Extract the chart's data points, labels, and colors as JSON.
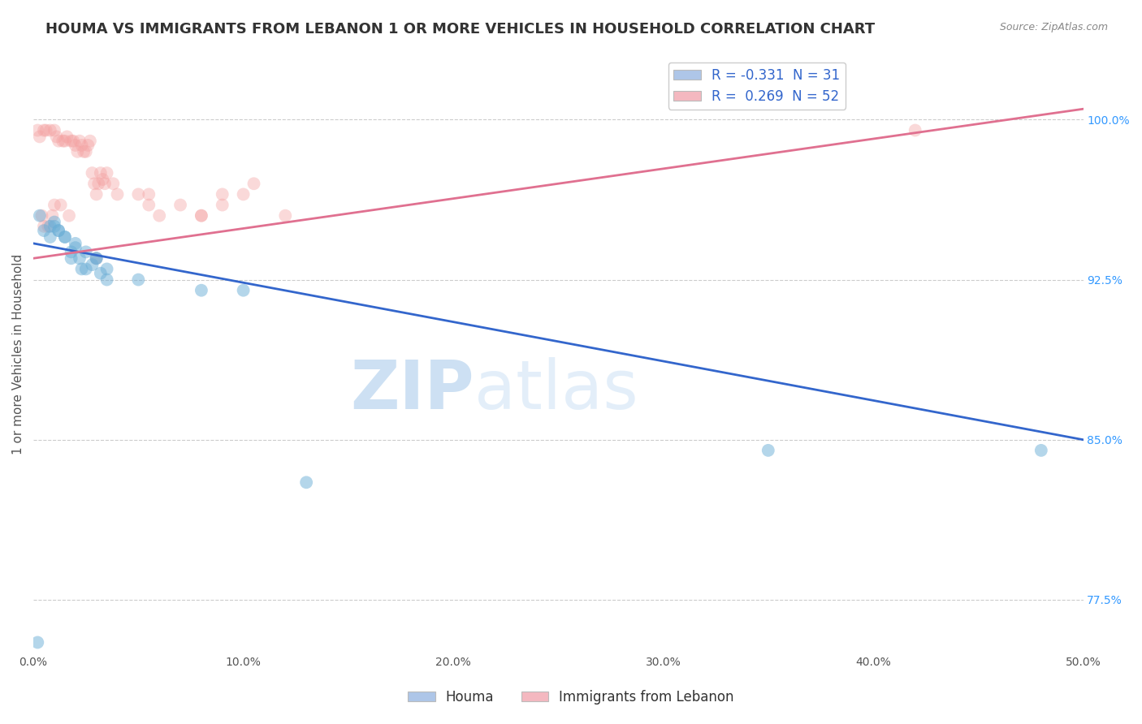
{
  "title": "HOUMA VS IMMIGRANTS FROM LEBANON 1 OR MORE VEHICLES IN HOUSEHOLD CORRELATION CHART",
  "source": "Source: ZipAtlas.com",
  "ylabel": "1 or more Vehicles in Household",
  "xlim": [
    0.0,
    50.0
  ],
  "ylim": [
    75.0,
    103.0
  ],
  "yticks": [
    77.5,
    85.0,
    92.5,
    100.0
  ],
  "xticks": [
    0.0,
    10.0,
    20.0,
    30.0,
    40.0,
    50.0
  ],
  "xtick_labels": [
    "0.0%",
    "10.0%",
    "20.0%",
    "30.0%",
    "40.0%",
    "50.0%"
  ],
  "ytick_labels": [
    "77.5%",
    "85.0%",
    "92.5%",
    "100.0%"
  ],
  "blue_R": -0.331,
  "blue_N": 31,
  "pink_R": 0.269,
  "pink_N": 52,
  "blue_color": "#6baed6",
  "pink_color": "#f4a0a0",
  "blue_line_color": "#3366cc",
  "pink_line_color": "#e07090",
  "watermark": "ZIPatlas",
  "blue_x": [
    0.3,
    0.5,
    0.8,
    1.0,
    1.2,
    1.5,
    1.8,
    2.0,
    2.2,
    2.5,
    2.8,
    3.0,
    3.2,
    3.5,
    1.0,
    1.5,
    2.0,
    2.5,
    3.0,
    0.8,
    1.2,
    1.8,
    2.3,
    3.5,
    5.0,
    8.0,
    10.0,
    0.2,
    13.0,
    35.0,
    48.0
  ],
  "blue_y": [
    95.5,
    94.8,
    94.5,
    95.0,
    94.8,
    94.5,
    93.8,
    94.0,
    93.5,
    93.0,
    93.2,
    93.5,
    92.8,
    93.0,
    95.2,
    94.5,
    94.2,
    93.8,
    93.5,
    95.0,
    94.8,
    93.5,
    93.0,
    92.5,
    92.5,
    92.0,
    92.0,
    75.5,
    83.0,
    84.5,
    84.5
  ],
  "pink_x": [
    0.2,
    0.3,
    0.5,
    0.6,
    0.8,
    1.0,
    1.1,
    1.2,
    1.4,
    1.5,
    1.6,
    1.8,
    1.9,
    2.0,
    2.1,
    2.2,
    2.3,
    2.4,
    2.5,
    2.6,
    2.7,
    2.8,
    2.9,
    3.0,
    3.1,
    3.2,
    3.3,
    3.4,
    3.5,
    0.4,
    0.7,
    0.9,
    1.3,
    1.7,
    4.0,
    5.0,
    5.5,
    6.0,
    7.0,
    8.0,
    9.0,
    10.0,
    12.0,
    0.5,
    1.0,
    3.8,
    5.5,
    8.0,
    9.0,
    10.5,
    42.0,
    3.0
  ],
  "pink_y": [
    99.5,
    99.2,
    99.5,
    99.5,
    99.5,
    99.5,
    99.2,
    99.0,
    99.0,
    99.0,
    99.2,
    99.0,
    99.0,
    98.8,
    98.5,
    99.0,
    98.8,
    98.5,
    98.5,
    98.8,
    99.0,
    97.5,
    97.0,
    96.5,
    97.0,
    97.5,
    97.2,
    97.0,
    97.5,
    95.5,
    95.0,
    95.5,
    96.0,
    95.5,
    96.5,
    96.5,
    96.0,
    95.5,
    96.0,
    95.5,
    96.0,
    96.5,
    95.5,
    95.0,
    96.0,
    97.0,
    96.5,
    95.5,
    96.5,
    97.0,
    99.5,
    93.5
  ],
  "legend_box_blue": "#aec6e8",
  "legend_box_pink": "#f4b8c0",
  "title_fontsize": 13,
  "axis_label_fontsize": 11,
  "tick_fontsize": 10,
  "legend_fontsize": 12,
  "blue_marker_size": 130,
  "pink_marker_size": 130,
  "blue_marker_alpha": 0.5,
  "pink_marker_alpha": 0.4,
  "blue_line_x0": 0.0,
  "blue_line_x1": 50.0,
  "blue_line_y0": 94.2,
  "blue_line_y1": 85.0,
  "pink_line_x0": 0.0,
  "pink_line_x1": 50.0,
  "pink_line_y0": 93.5,
  "pink_line_y1": 100.5
}
